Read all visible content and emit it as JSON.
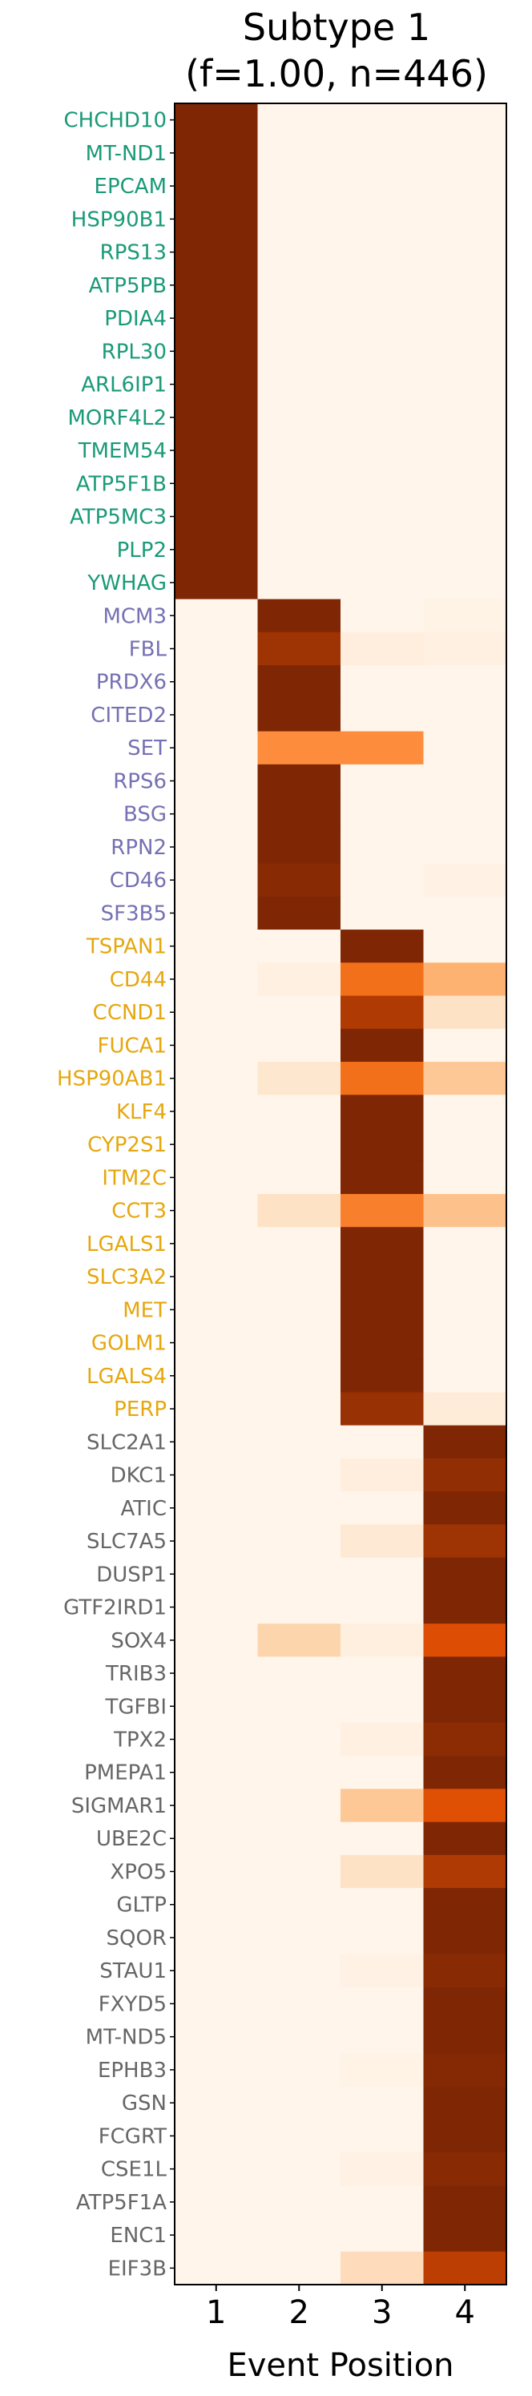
{
  "chart_data": {
    "type": "heatmap",
    "title_lines": [
      "Subtype 1",
      "(f=1.00, n=446)"
    ],
    "xlabel": "Event Position",
    "x_ticks": [
      "1",
      "2",
      "3",
      "4"
    ],
    "colormap": "Oranges",
    "value_range": [
      0,
      1
    ],
    "groups": [
      {
        "color": "#1a9a78",
        "genes": [
          "CHCHD10",
          "MT-ND1",
          "EPCAM",
          "HSP90B1",
          "RPS13",
          "ATP5PB",
          "PDIA4",
          "RPL30",
          "ARL6IP1",
          "MORF4L2",
          "TMEM54",
          "ATP5F1B",
          "ATP5MC3",
          "PLP2",
          "YWHAG"
        ]
      },
      {
        "color": "#7570b3",
        "genes": [
          "MCM3",
          "FBL",
          "PRDX6",
          "CITED2",
          "SET",
          "RPS6",
          "BSG",
          "RPN2",
          "CD46",
          "SF3B5"
        ]
      },
      {
        "color": "#e6a70e",
        "genes": [
          "TSPAN1",
          "CD44",
          "CCND1",
          "FUCA1",
          "HSP90AB1",
          "KLF4",
          "CYP2S1",
          "ITM2C",
          "CCT3",
          "LGALS1",
          "SLC3A2",
          "MET",
          "GOLM1",
          "LGALS4",
          "PERP"
        ]
      },
      {
        "color": "#666666",
        "genes": [
          "SLC2A1",
          "DKC1",
          "ATIC",
          "SLC7A5",
          "DUSP1",
          "GTF2IRD1",
          "SOX4",
          "TRIB3",
          "TGFBI",
          "TPX2",
          "PMEPA1",
          "SIGMAR1",
          "UBE2C",
          "XPO5",
          "GLTP",
          "SQOR",
          "STAU1",
          "FXYD5",
          "MT-ND5",
          "EPHB3",
          "GSN",
          "FCGRT",
          "CSE1L",
          "ATP5F1A",
          "ENC1",
          "EIF3B"
        ]
      }
    ],
    "rows": [
      [
        "CHCHD10",
        [
          1,
          0,
          0,
          0
        ]
      ],
      [
        "MT-ND1",
        [
          1,
          0,
          0,
          0
        ]
      ],
      [
        "EPCAM",
        [
          1,
          0,
          0,
          0
        ]
      ],
      [
        "HSP90B1",
        [
          1,
          0,
          0,
          0
        ]
      ],
      [
        "RPS13",
        [
          1,
          0,
          0,
          0
        ]
      ],
      [
        "ATP5PB",
        [
          1,
          0,
          0,
          0
        ]
      ],
      [
        "PDIA4",
        [
          1,
          0,
          0,
          0
        ]
      ],
      [
        "RPL30",
        [
          1,
          0,
          0,
          0
        ]
      ],
      [
        "ARL6IP1",
        [
          1,
          0,
          0,
          0
        ]
      ],
      [
        "MORF4L2",
        [
          1,
          0,
          0,
          0
        ]
      ],
      [
        "TMEM54",
        [
          1,
          0,
          0,
          0
        ]
      ],
      [
        "ATP5F1B",
        [
          1,
          0,
          0,
          0
        ]
      ],
      [
        "ATP5MC3",
        [
          1,
          0,
          0,
          0
        ]
      ],
      [
        "PLP2",
        [
          1,
          0,
          0,
          0
        ]
      ],
      [
        "YWHAG",
        [
          1,
          0,
          0,
          0
        ]
      ],
      [
        "MCM3",
        [
          0,
          1,
          0,
          0.02
        ]
      ],
      [
        "FBL",
        [
          0,
          0.9,
          0.06,
          0.04
        ]
      ],
      [
        "PRDX6",
        [
          0,
          1,
          0,
          0
        ]
      ],
      [
        "CITED2",
        [
          0,
          1,
          0,
          0
        ]
      ],
      [
        "SET",
        [
          0,
          0.5,
          0.5,
          0
        ]
      ],
      [
        "RPS6",
        [
          0,
          1,
          0,
          0
        ]
      ],
      [
        "BSG",
        [
          0,
          1,
          0,
          0
        ]
      ],
      [
        "RPN2",
        [
          0,
          1,
          0,
          0
        ]
      ],
      [
        "CD46",
        [
          0,
          0.97,
          0,
          0.03
        ]
      ],
      [
        "SF3B5",
        [
          0,
          1,
          0,
          0
        ]
      ],
      [
        "TSPAN1",
        [
          0,
          0,
          1,
          0
        ]
      ],
      [
        "CD44",
        [
          0,
          0.04,
          0.6,
          0.36
        ]
      ],
      [
        "CCND1",
        [
          0,
          0,
          0.85,
          0.15
        ]
      ],
      [
        "FUCA1",
        [
          0,
          0,
          1,
          0
        ]
      ],
      [
        "HSP90AB1",
        [
          0,
          0.12,
          0.6,
          0.28
        ]
      ],
      [
        "KLF4",
        [
          0,
          0,
          1,
          0
        ]
      ],
      [
        "CYP2S1",
        [
          0,
          0,
          1,
          0
        ]
      ],
      [
        "ITM2C",
        [
          0,
          0,
          1,
          0
        ]
      ],
      [
        "CCT3",
        [
          0,
          0.15,
          0.55,
          0.3
        ]
      ],
      [
        "LGALS1",
        [
          0,
          0,
          1,
          0
        ]
      ],
      [
        "SLC3A2",
        [
          0,
          0,
          1,
          0
        ]
      ],
      [
        "MET",
        [
          0,
          0,
          1,
          0
        ]
      ],
      [
        "GOLM1",
        [
          0,
          0,
          1,
          0
        ]
      ],
      [
        "LGALS4",
        [
          0,
          0,
          1,
          0
        ]
      ],
      [
        "PERP",
        [
          0,
          0,
          0.92,
          0.08
        ]
      ],
      [
        "SLC2A1",
        [
          0,
          0,
          0,
          1
        ]
      ],
      [
        "DKC1",
        [
          0,
          0,
          0.06,
          0.94
        ]
      ],
      [
        "ATIC",
        [
          0,
          0,
          0,
          1
        ]
      ],
      [
        "SLC7A5",
        [
          0,
          0,
          0.1,
          0.9
        ]
      ],
      [
        "DUSP1",
        [
          0,
          0,
          0,
          1
        ]
      ],
      [
        "GTF2IRD1",
        [
          0,
          0,
          0,
          1
        ]
      ],
      [
        "SOX4",
        [
          0,
          0.22,
          0.05,
          0.73
        ]
      ],
      [
        "TRIB3",
        [
          0,
          0,
          0,
          1
        ]
      ],
      [
        "TGFBI",
        [
          0,
          0,
          0,
          1
        ]
      ],
      [
        "TPX2",
        [
          0,
          0,
          0.04,
          0.96
        ]
      ],
      [
        "PMEPA1",
        [
          0,
          0,
          0,
          1
        ]
      ],
      [
        "SIGMAR1",
        [
          0,
          0,
          0.28,
          0.72
        ]
      ],
      [
        "UBE2C",
        [
          0,
          0,
          0,
          1
        ]
      ],
      [
        "XPO5",
        [
          0,
          0,
          0.15,
          0.85
        ]
      ],
      [
        "GLTP",
        [
          0,
          0,
          0,
          1
        ]
      ],
      [
        "SQOR",
        [
          0,
          0,
          0,
          1
        ]
      ],
      [
        "STAU1",
        [
          0,
          0,
          0.03,
          0.97
        ]
      ],
      [
        "FXYD5",
        [
          0,
          0,
          0,
          1
        ]
      ],
      [
        "MT-ND5",
        [
          0,
          0,
          0,
          1
        ]
      ],
      [
        "EPHB3",
        [
          0,
          0,
          0.02,
          0.98
        ]
      ],
      [
        "GSN",
        [
          0,
          0,
          0,
          1
        ]
      ],
      [
        "FCGRT",
        [
          0,
          0,
          0,
          1
        ]
      ],
      [
        "CSE1L",
        [
          0,
          0,
          0.03,
          0.97
        ]
      ],
      [
        "ATP5F1A",
        [
          0,
          0,
          0,
          1
        ]
      ],
      [
        "ENC1",
        [
          0,
          0,
          0,
          1
        ]
      ],
      [
        "EIF3B",
        [
          0,
          0,
          0.18,
          0.82
        ]
      ]
    ]
  }
}
